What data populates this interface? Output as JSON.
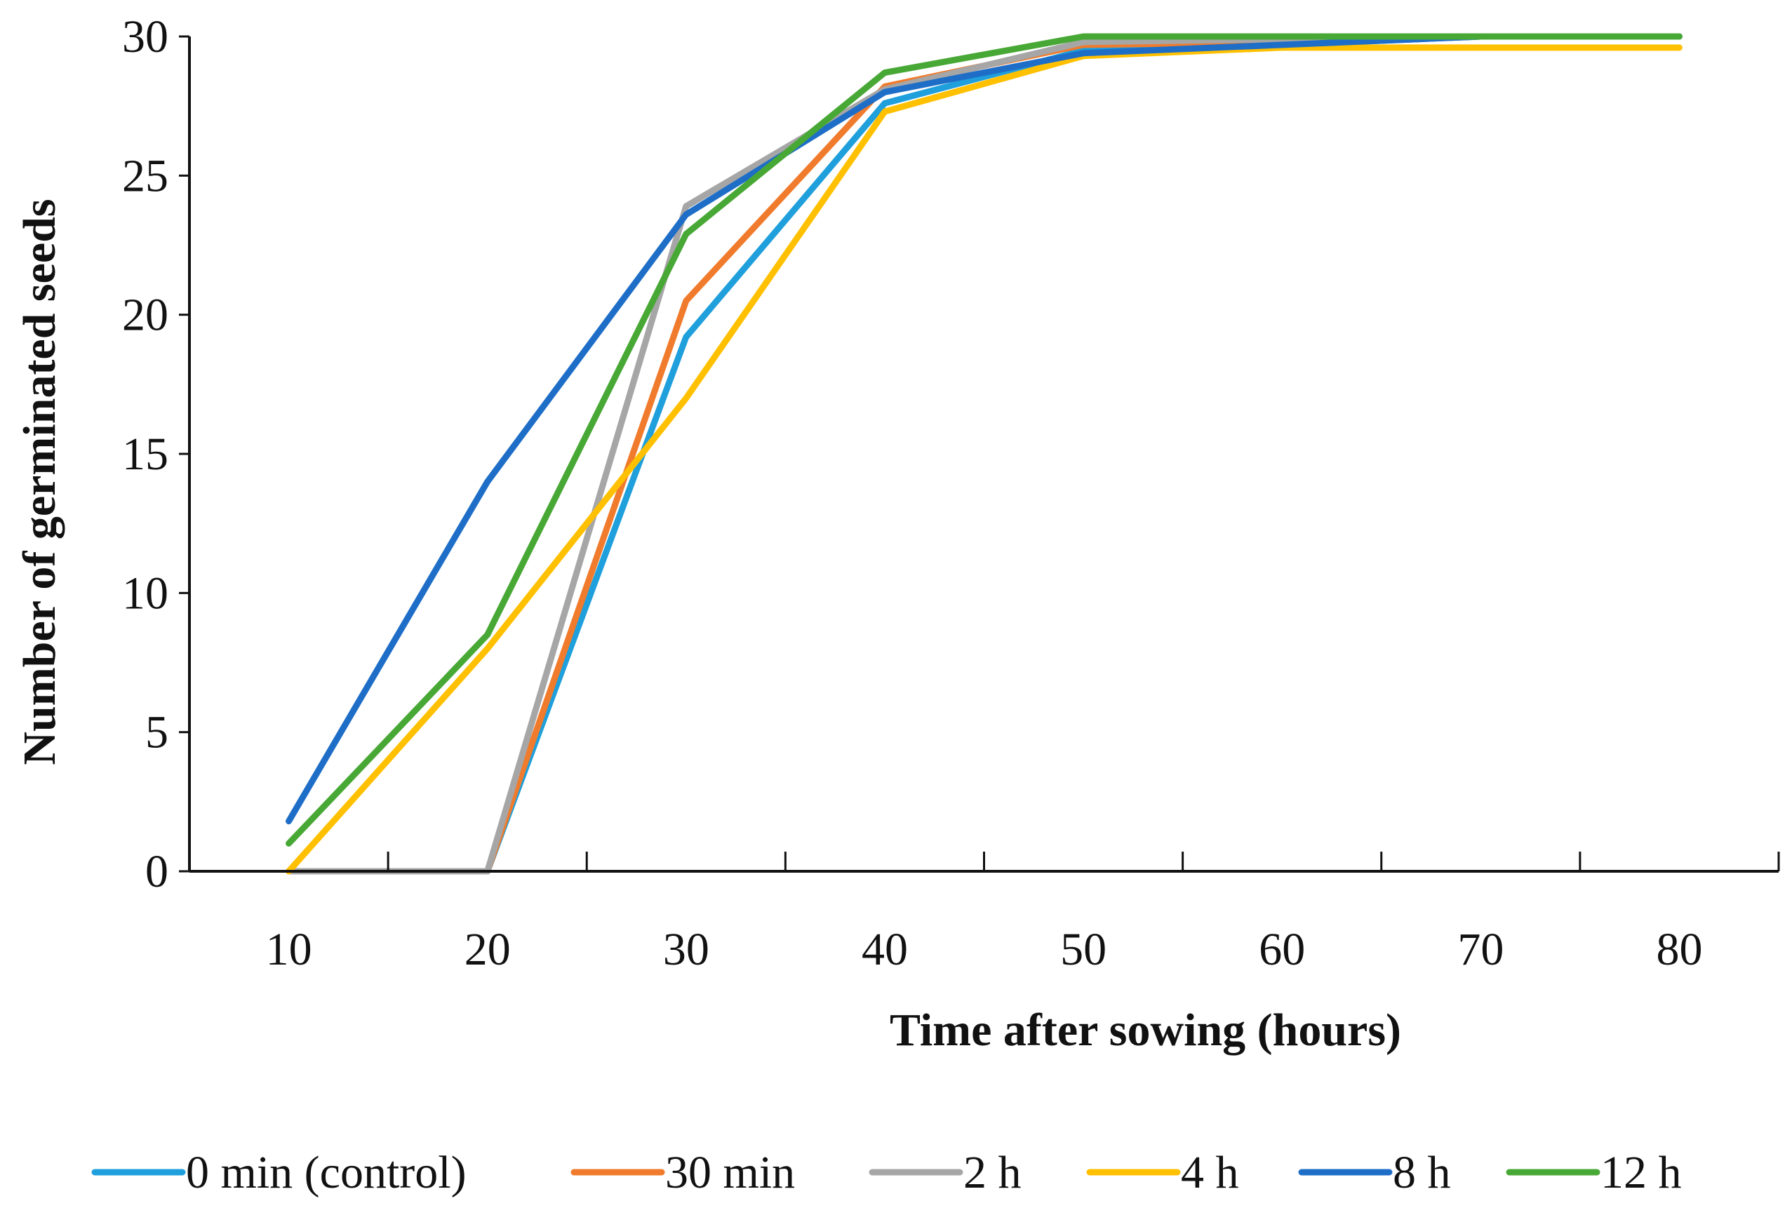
{
  "chart_data": {
    "type": "line",
    "title": "",
    "xlabel": "Time after sowing (hours)",
    "ylabel": "Number of germinated seeds",
    "x": [
      10,
      20,
      30,
      40,
      50,
      60,
      70,
      80
    ],
    "xlim": [
      5,
      85
    ],
    "ylim": [
      0,
      30
    ],
    "y_ticks": [
      0,
      5,
      10,
      15,
      20,
      25,
      30
    ],
    "x_ticks": [
      10,
      20,
      30,
      40,
      50,
      60,
      70,
      80
    ],
    "grid": false,
    "legend_position": "bottom",
    "series": [
      {
        "name": "0 min (control)",
        "color": "#1F9FDB",
        "values": [
          0,
          0,
          19.2,
          27.6,
          29.5,
          29.7,
          30,
          30
        ]
      },
      {
        "name": "30 min",
        "color": "#F07B2C",
        "values": [
          0,
          0,
          20.5,
          28.2,
          29.7,
          29.8,
          30,
          30
        ]
      },
      {
        "name": "2 h",
        "color": "#A6A6A6",
        "values": [
          0,
          0,
          23.9,
          28.1,
          29.8,
          29.9,
          30,
          30
        ]
      },
      {
        "name": "4 h",
        "color": "#FFC000",
        "values": [
          0,
          8,
          17,
          27.3,
          29.3,
          29.6,
          29.6,
          29.6
        ]
      },
      {
        "name": "8 h",
        "color": "#1E6EC8",
        "values": [
          1.8,
          14,
          23.6,
          28,
          29.4,
          29.7,
          30,
          30
        ]
      },
      {
        "name": "12 h",
        "color": "#48A835",
        "values": [
          1,
          8.5,
          22.9,
          28.7,
          30,
          30,
          30,
          30
        ]
      }
    ]
  }
}
